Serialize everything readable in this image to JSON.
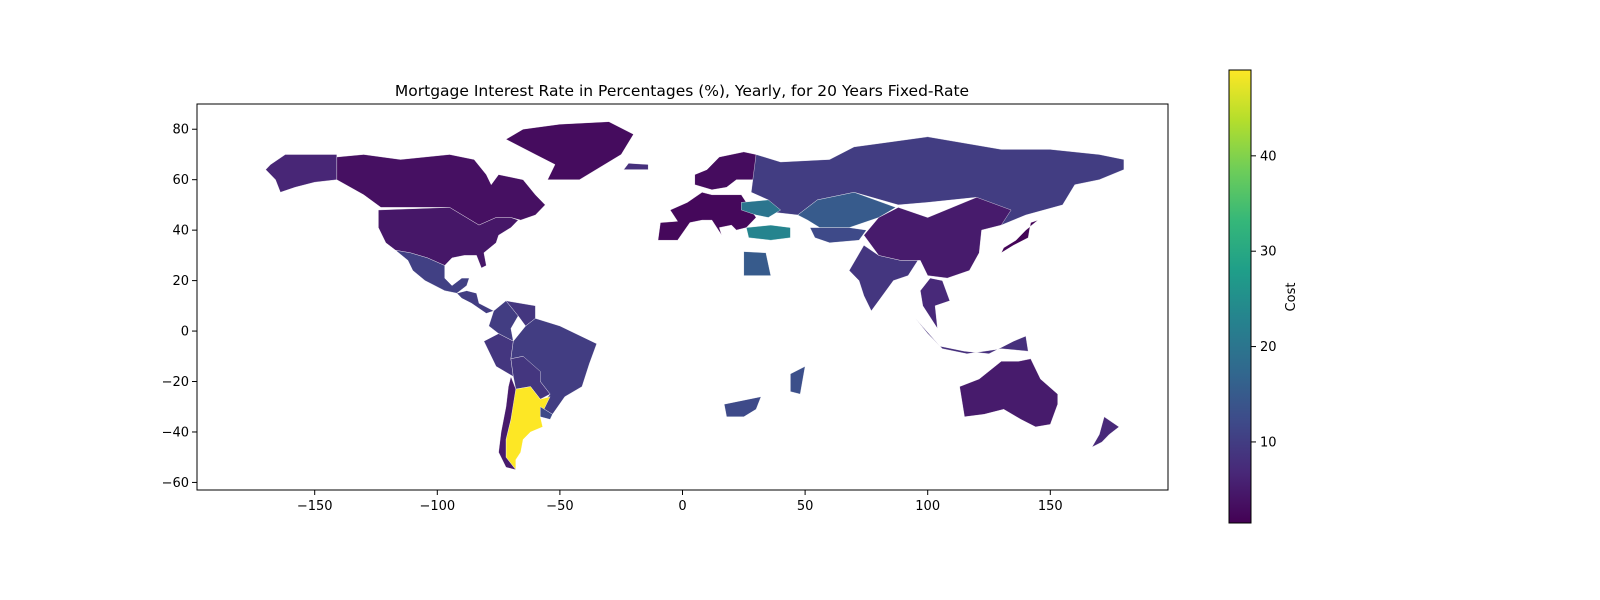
{
  "chart_data": {
    "type": "choropleth-map",
    "title": "Mortgage Interest Rate in Percentages (%), Yearly, for 20 Years Fixed-Rate",
    "xticks": [
      -150,
      -100,
      -50,
      0,
      50,
      100,
      150
    ],
    "yticks": [
      80,
      60,
      40,
      20,
      0,
      -20,
      -40,
      -60
    ],
    "xlim": [
      -198,
      198
    ],
    "ylim": [
      -63,
      90
    ],
    "colorbar": {
      "label": "Cost",
      "colormap": "viridis",
      "range": [
        1.5,
        49
      ],
      "ticks": [
        10,
        20,
        30,
        40
      ]
    },
    "regions": [
      {
        "name": "Canada",
        "value": 3.5
      },
      {
        "name": "Alaska (United States)",
        "value": 6.5
      },
      {
        "name": "United States",
        "value": 4.5
      },
      {
        "name": "Greenland",
        "value": 3
      },
      {
        "name": "Mexico",
        "value": 10.5
      },
      {
        "name": "Central America",
        "value": 10
      },
      {
        "name": "Colombia",
        "value": 10
      },
      {
        "name": "Venezuela",
        "value": 9
      },
      {
        "name": "Peru",
        "value": 9
      },
      {
        "name": "Brazil",
        "value": 10
      },
      {
        "name": "Bolivia / Paraguay",
        "value": 9
      },
      {
        "name": "Argentina",
        "value": 49
      },
      {
        "name": "Chile",
        "value": 5
      },
      {
        "name": "Uruguay",
        "value": 12
      },
      {
        "name": "Iceland",
        "value": 8
      },
      {
        "name": "Western Europe",
        "value": 2.5
      },
      {
        "name": "Scandinavia",
        "value": 3
      },
      {
        "name": "Russia",
        "value": 10
      },
      {
        "name": "Ukraine",
        "value": 20
      },
      {
        "name": "Turkey",
        "value": 23
      },
      {
        "name": "Kazakhstan",
        "value": 15
      },
      {
        "name": "Central Asia",
        "value": 12
      },
      {
        "name": "Egypt",
        "value": 15
      },
      {
        "name": "India",
        "value": 9
      },
      {
        "name": "China",
        "value": 5
      },
      {
        "name": "Japan",
        "value": 2
      },
      {
        "name": "Southeast Asia",
        "value": 7
      },
      {
        "name": "Indonesia",
        "value": 8
      },
      {
        "name": "Australia",
        "value": 5
      },
      {
        "name": "New Zealand",
        "value": 7
      },
      {
        "name": "South Africa",
        "value": 12
      },
      {
        "name": "Madagascar",
        "value": 13
      }
    ]
  }
}
